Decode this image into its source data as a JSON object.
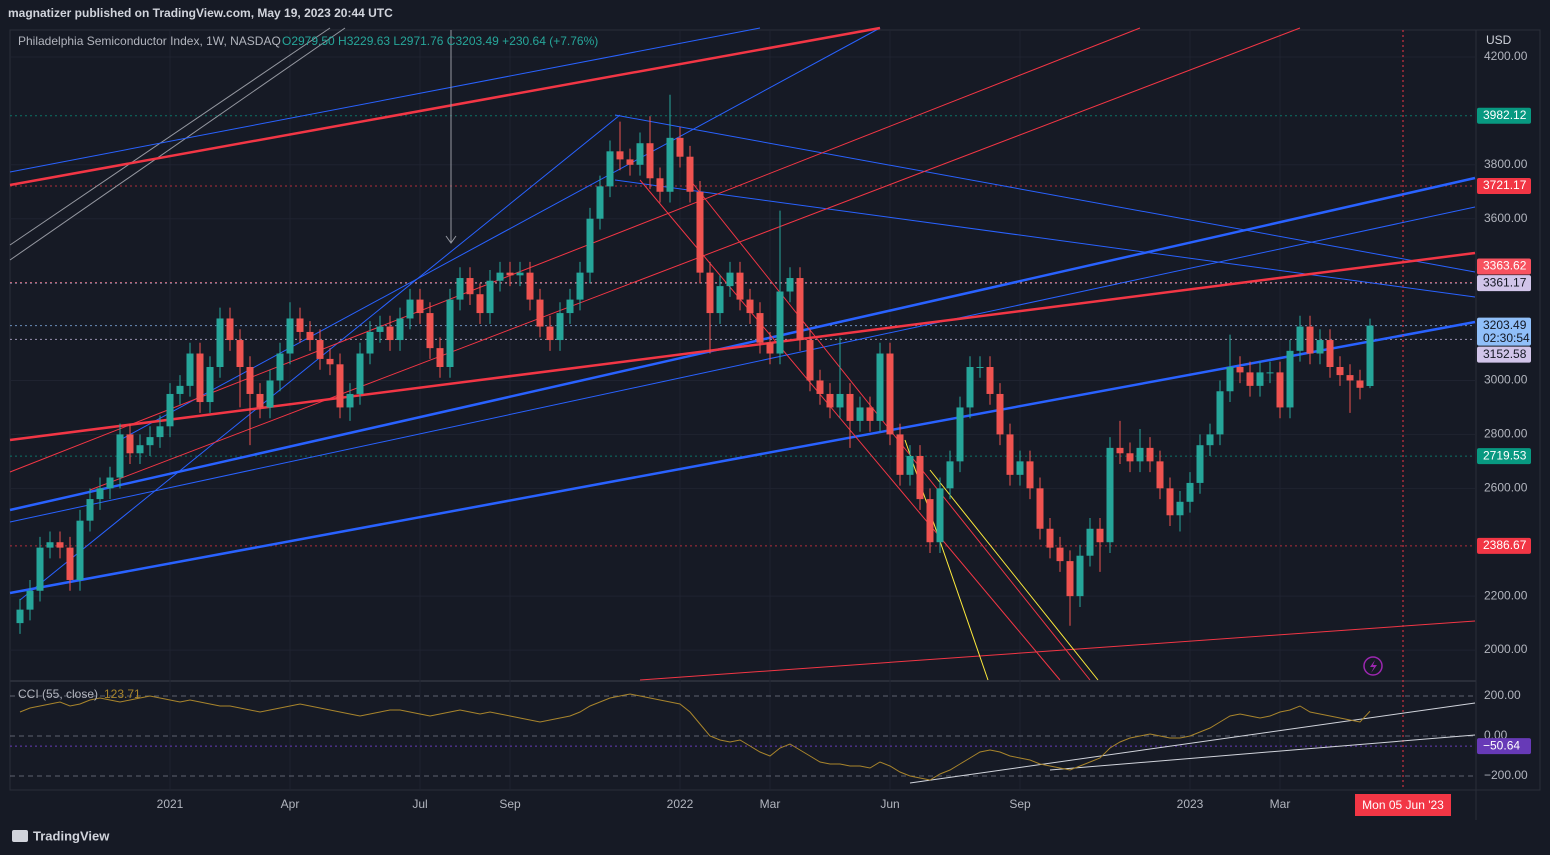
{
  "header": "magnatizer published on TradingView.com, May 19, 2023 20:44 UTC",
  "footer": "TradingView",
  "chart_data": {
    "type": "candlestick",
    "title": "Philadelphia Semiconductor Index, 1W, NASDAQ",
    "ohlc_text": "O2979.50 H3229.63 L2971.76 C3203.49 +230.64 (+7.76%)",
    "currency": "USD",
    "up_color": "#26a69a",
    "down_color": "#ef5350",
    "xlim": [
      -1,
      145.5
    ],
    "xticks": [
      {
        "value": 15,
        "label": "2021"
      },
      {
        "value": 27,
        "label": "Apr"
      },
      {
        "value": 40,
        "label": "Jul"
      },
      {
        "value": 49,
        "label": "Sep"
      },
      {
        "value": 66,
        "label": "2022"
      },
      {
        "value": 75,
        "label": "Mar"
      },
      {
        "value": 87,
        "label": "Jun"
      },
      {
        "value": 100,
        "label": "Sep"
      },
      {
        "value": 117,
        "label": "2023"
      },
      {
        "value": 126,
        "label": "Mar"
      }
    ],
    "ylim": [
      1889,
      4300
    ],
    "yticks": [
      {
        "value": 4200,
        "label": "4200.00"
      },
      {
        "value": 3800,
        "label": "3800.00"
      },
      {
        "value": 3600,
        "label": "3600.00"
      },
      {
        "value": 3000,
        "label": "3000.00"
      },
      {
        "value": 2800,
        "label": "2800.00"
      },
      {
        "value": 2600,
        "label": "2600.00"
      },
      {
        "value": 2200,
        "label": "2200.00"
      },
      {
        "value": 2000,
        "label": "2000.00"
      }
    ],
    "grid": true,
    "series": [
      {
        "name": "Philadelphia Semiconductor Index",
        "open": [
          2100,
          2150,
          2220,
          2380,
          2400,
          2380,
          2260,
          2480,
          2560,
          2600,
          2640,
          2800,
          2730,
          2760,
          2790,
          2830,
          2950,
          2980,
          3100,
          2920,
          3050,
          3230,
          3150,
          3050,
          2950,
          2900,
          3000,
          3100,
          3230,
          3180,
          3150,
          3080,
          3060,
          2900,
          2950,
          3100,
          3180,
          3200,
          3150,
          3230,
          3300,
          3250,
          3120,
          3050,
          3300,
          3380,
          3320,
          3250,
          3370,
          3400,
          3390,
          3400,
          3300,
          3200,
          3150,
          3250,
          3300,
          3400,
          3600,
          3720,
          3850,
          3820,
          3800,
          3880,
          3750,
          3700,
          3900,
          3830,
          3700,
          3400,
          3250,
          3350,
          3400,
          3300,
          3250,
          3140,
          3100,
          3330,
          3380,
          3150,
          3000,
          2950,
          2900,
          2950,
          2850,
          2900,
          2850,
          3100,
          2800,
          2650,
          2720,
          2560,
          2400,
          2600,
          2700,
          2900,
          3050,
          3050,
          2950,
          2800,
          2650,
          2700,
          2600,
          2450,
          2380,
          2330,
          2200,
          2350,
          2450,
          2400,
          2750,
          2730,
          2700,
          2750,
          2700,
          2600,
          2500,
          2550,
          2620,
          2760,
          2800,
          2960,
          3050,
          3030,
          2980,
          3030,
          3030,
          2900,
          3110,
          3200,
          3100,
          3150,
          3050,
          3020,
          3000,
          2979.5
        ],
        "high": [
          2190,
          2260,
          2420,
          2440,
          2440,
          2420,
          2520,
          2600,
          2640,
          2680,
          2840,
          2840,
          2800,
          2830,
          2870,
          2990,
          3020,
          3140,
          3140,
          3090,
          3270,
          3270,
          3190,
          3090,
          2990,
          3040,
          3140,
          3290,
          3270,
          3220,
          3190,
          3120,
          3100,
          2990,
          3140,
          3220,
          3240,
          3240,
          3270,
          3340,
          3340,
          3290,
          3160,
          3340,
          3420,
          3420,
          3360,
          3410,
          3440,
          3440,
          3440,
          3440,
          3340,
          3240,
          3290,
          3340,
          3440,
          3640,
          3760,
          3890,
          3960,
          3860,
          3920,
          3980,
          3790,
          4060,
          3940,
          3870,
          3740,
          3440,
          3390,
          3440,
          3440,
          3340,
          3290,
          3180,
          3630,
          3420,
          3420,
          3190,
          3040,
          2990,
          3160,
          2990,
          2940,
          2940,
          3140,
          3140,
          2840,
          2760,
          2760,
          2600,
          2640,
          2740,
          2940,
          3090,
          3090,
          3090,
          2990,
          2840,
          2740,
          2740,
          2640,
          2490,
          2420,
          2370,
          2390,
          2490,
          2490,
          2790,
          2850,
          2770,
          2820,
          2790,
          2740,
          2640,
          2590,
          2660,
          2800,
          2840,
          3000,
          3170,
          3090,
          3070,
          3070,
          3070,
          3070,
          3150,
          3240,
          3240,
          3190,
          3190,
          3090,
          3060,
          3040,
          3229.63
        ],
        "low": [
          2060,
          2110,
          2180,
          2340,
          2340,
          2220,
          2220,
          2440,
          2520,
          2560,
          2600,
          2690,
          2690,
          2720,
          2750,
          2790,
          2910,
          2940,
          2880,
          2880,
          3010,
          3110,
          2900,
          2760,
          2860,
          2860,
          2960,
          3060,
          3140,
          3110,
          3040,
          3020,
          2860,
          2850,
          2910,
          3060,
          3140,
          3110,
          3110,
          3190,
          3210,
          3080,
          3010,
          3010,
          3260,
          3280,
          3210,
          3210,
          3330,
          3350,
          3350,
          3260,
          3160,
          3110,
          3110,
          3210,
          3260,
          3360,
          3560,
          3680,
          3780,
          3760,
          3760,
          3710,
          3660,
          3660,
          3790,
          3660,
          3360,
          3100,
          3210,
          3310,
          3260,
          3210,
          3100,
          3060,
          3060,
          3290,
          3110,
          2960,
          2910,
          2860,
          2860,
          2750,
          2810,
          2810,
          2810,
          2760,
          2610,
          2610,
          2520,
          2360,
          2360,
          2560,
          2660,
          2860,
          3010,
          2910,
          2760,
          2610,
          2610,
          2560,
          2410,
          2340,
          2290,
          2090,
          2160,
          2310,
          2290,
          2360,
          2690,
          2660,
          2660,
          2660,
          2560,
          2460,
          2440,
          2510,
          2580,
          2720,
          2760,
          2920,
          2990,
          2940,
          2940,
          2990,
          2860,
          2860,
          3070,
          3060,
          3060,
          3010,
          2980,
          2880,
          2930,
          2971.76
        ],
        "close": [
          2150,
          2220,
          2380,
          2400,
          2380,
          2260,
          2480,
          2560,
          2600,
          2640,
          2800,
          2730,
          2760,
          2790,
          2830,
          2950,
          2980,
          3100,
          2920,
          3050,
          3230,
          3150,
          3050,
          2950,
          2900,
          3000,
          3100,
          3230,
          3180,
          3150,
          3080,
          3060,
          2900,
          2950,
          3100,
          3180,
          3200,
          3150,
          3230,
          3300,
          3250,
          3120,
          3050,
          3300,
          3380,
          3320,
          3250,
          3370,
          3400,
          3390,
          3400,
          3300,
          3200,
          3150,
          3250,
          3300,
          3400,
          3600,
          3720,
          3850,
          3820,
          3800,
          3880,
          3750,
          3700,
          3900,
          3830,
          3700,
          3400,
          3250,
          3350,
          3400,
          3300,
          3250,
          3140,
          3100,
          3330,
          3380,
          3150,
          3000,
          2950,
          2900,
          2950,
          2850,
          2900,
          2850,
          3100,
          2800,
          2650,
          2720,
          2560,
          2400,
          2600,
          2700,
          2900,
          3050,
          3050,
          2950,
          2800,
          2650,
          2700,
          2600,
          2450,
          2380,
          2330,
          2200,
          2350,
          2450,
          2400,
          2750,
          2730,
          2700,
          2750,
          2700,
          2600,
          2500,
          2550,
          2620,
          2760,
          2800,
          2960,
          3050,
          3030,
          2980,
          3030,
          3030,
          2900,
          3110,
          3200,
          3100,
          3150,
          3050,
          3020,
          3000,
          2972.85,
          3203.49
        ]
      }
    ],
    "price_badges": [
      {
        "value": 3982.12,
        "color": "#089981",
        "text_color": "#ffffff"
      },
      {
        "value": 3721.17,
        "color": "#f23645",
        "text_color": "#ffffff"
      },
      {
        "value": 3363.62,
        "color": "#f7525f",
        "text_color": "#ffffff"
      },
      {
        "value": 3361.17,
        "color": "#d1c4e9",
        "text_color": "#131722"
      },
      {
        "value": 3203.49,
        "color": "#90bff9",
        "text_color": "#131722",
        "countdown": "02:30:54"
      },
      {
        "value": 3152.58,
        "color": "#d1c4e9",
        "text_color": "#131722"
      },
      {
        "value": 2719.53,
        "color": "#089981",
        "text_color": "#ffffff"
      },
      {
        "value": 2386.67,
        "color": "#f23645",
        "text_color": "#ffffff"
      }
    ],
    "crosshair_label": "Mon 05 Jun '23",
    "cci": {
      "title": "CCI (55, close)",
      "legend_value": 123.71,
      "color": "#a9852c",
      "ylim": [
        -270,
        270
      ],
      "yticks": [
        {
          "value": 200,
          "label": "200.00"
        },
        {
          "value": 0,
          "label": "0.00"
        },
        {
          "value": -200,
          "label": "−200.00"
        }
      ],
      "badge": {
        "value": -50.64,
        "label": "−50.64",
        "color": "#673ab7"
      },
      "values": [
        120,
        140,
        150,
        160,
        170,
        150,
        160,
        180,
        190,
        180,
        170,
        180,
        190,
        200,
        190,
        180,
        170,
        180,
        170,
        160,
        150,
        150,
        140,
        130,
        120,
        130,
        140,
        150,
        160,
        150,
        140,
        130,
        120,
        110,
        100,
        110,
        120,
        130,
        130,
        120,
        110,
        100,
        110,
        120,
        130,
        120,
        110,
        120,
        110,
        100,
        90,
        80,
        70,
        80,
        90,
        100,
        120,
        150,
        170,
        190,
        200,
        210,
        200,
        190,
        180,
        170,
        160,
        120,
        60,
        0,
        -20,
        -30,
        -20,
        -50,
        -80,
        -100,
        -60,
        -40,
        -70,
        -100,
        -130,
        -140,
        -140,
        -150,
        -150,
        -160,
        -130,
        -150,
        -180,
        -200,
        -210,
        -220,
        -190,
        -170,
        -140,
        -110,
        -80,
        -70,
        -80,
        -100,
        -110,
        -120,
        -140,
        -150,
        -160,
        -170,
        -150,
        -130,
        -110,
        -60,
        -30,
        -10,
        0,
        10,
        0,
        -10,
        -10,
        0,
        20,
        40,
        70,
        100,
        110,
        100,
        90,
        100,
        120,
        130,
        150,
        120,
        110,
        100,
        90,
        80,
        70,
        123.71
      ]
    }
  }
}
